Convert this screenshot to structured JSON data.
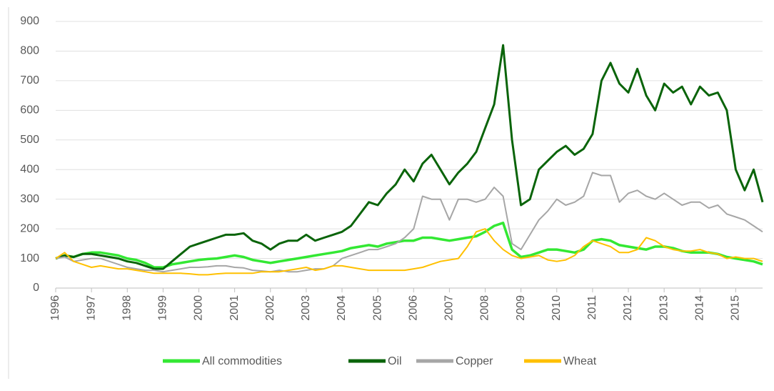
{
  "chart_data": {
    "type": "line",
    "x": [
      1996,
      1996.25,
      1996.5,
      1996.75,
      1997,
      1997.25,
      1997.5,
      1997.75,
      1998,
      1998.25,
      1998.5,
      1998.75,
      1999,
      1999.25,
      1999.5,
      1999.75,
      2000,
      2000.25,
      2000.5,
      2000.75,
      2001,
      2001.25,
      2001.5,
      2001.75,
      2002,
      2002.25,
      2002.5,
      2002.75,
      2003,
      2003.25,
      2003.5,
      2003.75,
      2004,
      2004.25,
      2004.5,
      2004.75,
      2005,
      2005.25,
      2005.5,
      2005.75,
      2006,
      2006.25,
      2006.5,
      2006.75,
      2007,
      2007.25,
      2007.5,
      2007.75,
      2008,
      2008.25,
      2008.5,
      2008.75,
      2009,
      2009.25,
      2009.5,
      2009.75,
      2010,
      2010.25,
      2010.5,
      2010.75,
      2011,
      2011.25,
      2011.5,
      2011.75,
      2012,
      2012.25,
      2012.5,
      2012.75,
      2013,
      2013.25,
      2013.5,
      2013.75,
      2014,
      2014.25,
      2014.5,
      2014.75,
      2015,
      2015.25,
      2015.5,
      2015.75
    ],
    "series": [
      {
        "name": "All commodities",
        "color": "#33e833",
        "width": 3.5,
        "values": [
          100,
          110,
          105,
          115,
          120,
          120,
          115,
          110,
          100,
          95,
          85,
          70,
          70,
          80,
          85,
          90,
          95,
          98,
          100,
          105,
          110,
          105,
          95,
          90,
          85,
          90,
          95,
          100,
          105,
          110,
          115,
          120,
          125,
          135,
          140,
          145,
          140,
          150,
          155,
          160,
          160,
          170,
          170,
          165,
          160,
          165,
          170,
          175,
          190,
          210,
          220,
          130,
          105,
          110,
          120,
          130,
          130,
          125,
          120,
          130,
          160,
          165,
          160,
          145,
          140,
          135,
          130,
          140,
          140,
          135,
          125,
          120,
          120,
          120,
          115,
          105,
          100,
          95,
          90,
          80
        ]
      },
      {
        "name": "Oil",
        "color": "#0a640a",
        "width": 3,
        "values": [
          100,
          110,
          105,
          115,
          115,
          110,
          105,
          100,
          90,
          85,
          75,
          65,
          65,
          90,
          115,
          140,
          150,
          160,
          170,
          180,
          180,
          185,
          160,
          150,
          130,
          150,
          160,
          160,
          180,
          160,
          170,
          180,
          190,
          210,
          250,
          290,
          280,
          320,
          350,
          400,
          360,
          420,
          450,
          400,
          350,
          390,
          420,
          460,
          540,
          620,
          820,
          500,
          280,
          300,
          400,
          430,
          460,
          480,
          450,
          470,
          520,
          700,
          760,
          690,
          660,
          740,
          650,
          600,
          690,
          660,
          680,
          620,
          680,
          650,
          660,
          600,
          400,
          330,
          400,
          290
        ]
      },
      {
        "name": "Copper",
        "color": "#a6a6a6",
        "width": 2,
        "values": [
          100,
          105,
          90,
          95,
          100,
          100,
          90,
          80,
          70,
          65,
          60,
          60,
          55,
          60,
          65,
          70,
          70,
          72,
          75,
          75,
          70,
          68,
          60,
          58,
          55,
          60,
          55,
          55,
          60,
          65,
          65,
          75,
          100,
          110,
          120,
          130,
          130,
          140,
          150,
          170,
          200,
          310,
          300,
          300,
          230,
          300,
          300,
          290,
          300,
          340,
          310,
          150,
          130,
          180,
          230,
          260,
          300,
          280,
          290,
          310,
          390,
          380,
          380,
          290,
          320,
          330,
          310,
          300,
          320,
          300,
          280,
          290,
          290,
          270,
          280,
          250,
          240,
          230,
          210,
          190
        ]
      },
      {
        "name": "Wheat",
        "color": "#ffc000",
        "width": 2,
        "values": [
          100,
          120,
          90,
          80,
          70,
          75,
          70,
          65,
          65,
          60,
          55,
          50,
          50,
          50,
          50,
          48,
          45,
          45,
          48,
          50,
          50,
          50,
          50,
          55,
          55,
          55,
          60,
          65,
          70,
          60,
          65,
          75,
          75,
          70,
          65,
          60,
          60,
          60,
          60,
          60,
          65,
          70,
          80,
          90,
          95,
          100,
          140,
          190,
          200,
          160,
          130,
          110,
          100,
          105,
          110,
          95,
          90,
          95,
          110,
          140,
          160,
          150,
          140,
          120,
          120,
          130,
          170,
          160,
          140,
          130,
          125,
          125,
          130,
          120,
          115,
          100,
          105,
          100,
          100,
          90
        ]
      }
    ],
    "xlim": [
      1996,
      2015.75
    ],
    "xticks": [
      1996,
      1997,
      1998,
      1999,
      2000,
      2001,
      2002,
      2003,
      2004,
      2005,
      2006,
      2007,
      2008,
      2009,
      2010,
      2011,
      2012,
      2013,
      2014,
      2015
    ],
    "ylim": [
      0,
      900
    ],
    "yticks": [
      0,
      100,
      200,
      300,
      400,
      500,
      600,
      700,
      800,
      900
    ],
    "grid": true,
    "legend": "bottom"
  }
}
